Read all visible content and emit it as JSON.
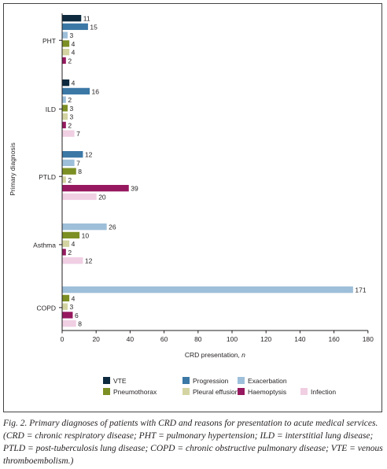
{
  "chart_data": {
    "type": "bar",
    "orientation": "horizontal",
    "categories": [
      "PHT",
      "ILD",
      "PTLD",
      "Asthma",
      "COPD"
    ],
    "series": [
      {
        "name": "VTE",
        "color": "#0d2a3e",
        "values": [
          11,
          4,
          null,
          null,
          null
        ]
      },
      {
        "name": "Progression",
        "color": "#3b78a6",
        "values": [
          15,
          16,
          12,
          null,
          null
        ]
      },
      {
        "name": "Exacerbation",
        "color": "#9ebfd9",
        "values": [
          3,
          2,
          7,
          26,
          171
        ]
      },
      {
        "name": "Pneumothorax",
        "color": "#7c8f24",
        "values": [
          4,
          3,
          8,
          10,
          4
        ]
      },
      {
        "name": "Pleural effusion",
        "color": "#d3d4a2",
        "values": [
          4,
          3,
          2,
          4,
          3
        ]
      },
      {
        "name": "Haemoptysis",
        "color": "#96195f",
        "values": [
          2,
          2,
          39,
          2,
          6
        ]
      },
      {
        "name": "Infection",
        "color": "#f0cfe3",
        "values": [
          null,
          7,
          20,
          12,
          8
        ]
      }
    ],
    "xlabel": "CRD presentation, n",
    "ylabel": "Primary diagnosis",
    "xlim": [
      0,
      180
    ],
    "xticks": [
      0,
      20,
      40,
      60,
      80,
      100,
      120,
      140,
      160,
      180
    ],
    "grid": false,
    "legend": "bottom"
  },
  "caption": {
    "text": "Fig. 2. Primary diagnoses of patients with CRD and reasons for presentation to acute medical services. (CRD = chronic respiratory disease; PHT = pulmonary hypertension; ILD = interstitial lung disease; PTLD = post-tuberculosis lung disease; COPD = chronic obstructive pulmonary disease; VTE = venous thromboembolism.)"
  }
}
